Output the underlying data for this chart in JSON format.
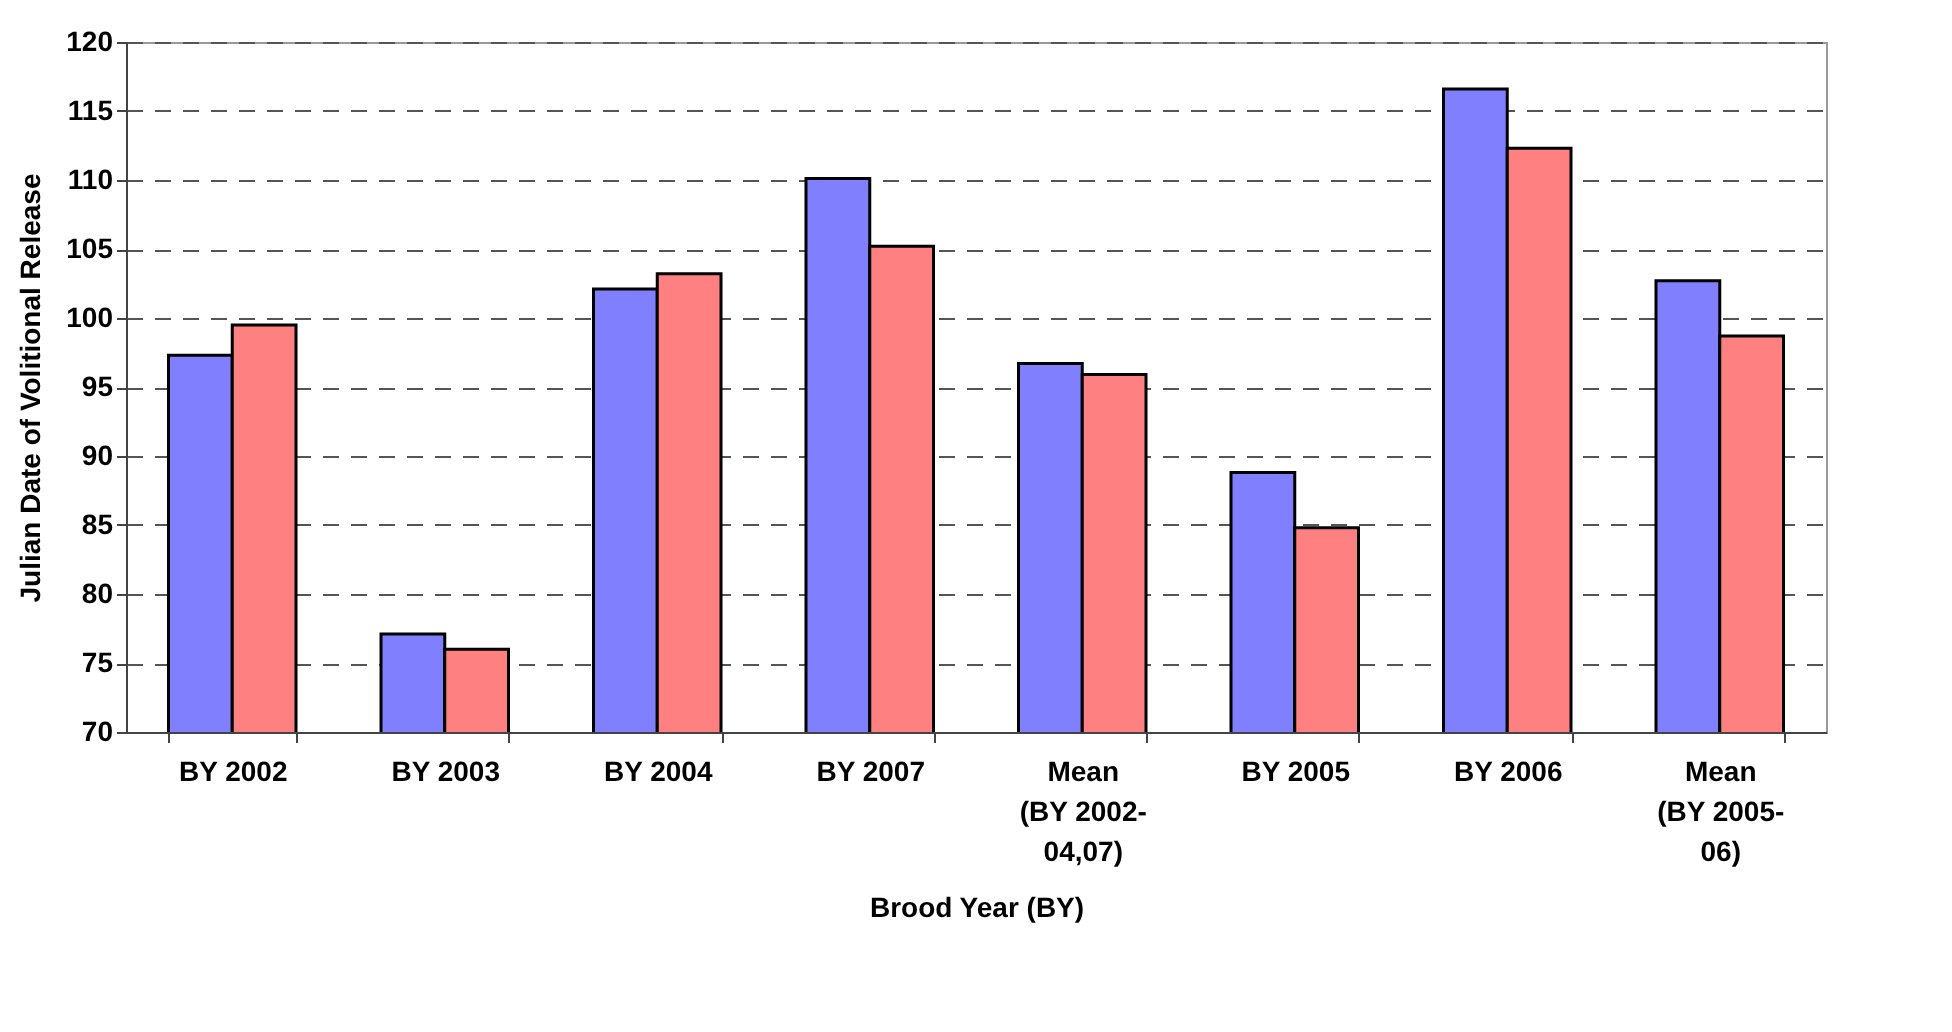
{
  "chart_data": {
    "type": "bar",
    "xlabel": "Brood Year (BY)",
    "ylabel": "Julian Date of Volitional Release",
    "categories": [
      "BY 2002",
      "BY 2003",
      "BY 2004",
      "BY 2007",
      "Mean (BY 2002-04,07)",
      "BY 2005",
      "BY 2006",
      "Mean (BY 2005-06)"
    ],
    "series": [
      {
        "color": "#8080ff",
        "values": [
          97.3,
          77.1,
          102.1,
          110.1,
          96.7,
          88.8,
          116.6,
          102.7
        ]
      },
      {
        "color": "#ff8080",
        "values": [
          99.5,
          76.0,
          103.2,
          105.2,
          95.9,
          84.8,
          112.3,
          98.7
        ]
      }
    ],
    "ylim": [
      70,
      120
    ],
    "yticks": [
      70,
      75,
      80,
      85,
      90,
      95,
      100,
      105,
      110,
      115,
      120
    ],
    "grid": "y",
    "legend": false
  }
}
